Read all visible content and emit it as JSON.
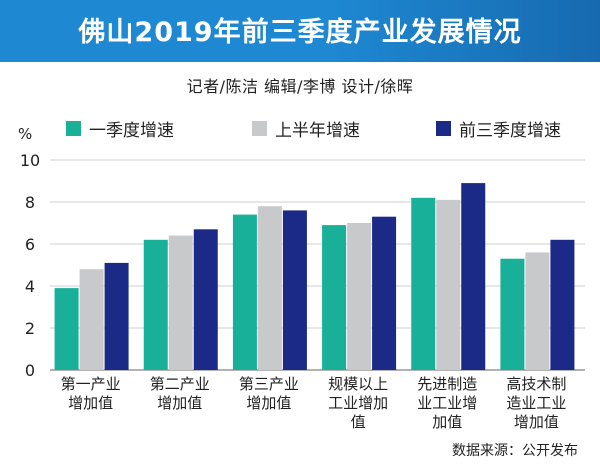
{
  "header": {
    "title": "佛山2019年前三季度产业发展情况",
    "credits": "记者/陈洁  编辑/李博  设计/徐晖"
  },
  "source": "数据来源：公开发布",
  "colors": {
    "banner": "#1e88d2",
    "series_q1": "#19b09a",
    "series_h1": "#c8c9cb",
    "series_q3": "#1a2a86"
  },
  "chart_data": {
    "type": "bar",
    "ylabel": "%",
    "ylim": [
      0,
      10
    ],
    "yticks": [
      "0",
      "2",
      "4",
      "6",
      "8",
      "10"
    ],
    "grid": true,
    "legend_position": "top",
    "categories": [
      [
        "第一产业",
        "增加值"
      ],
      [
        "第二产业",
        "增加值"
      ],
      [
        "第三产业",
        "增加值"
      ],
      [
        "规模以上",
        "工业增加",
        "值"
      ],
      [
        "先进制造",
        "业工业增",
        "加值"
      ],
      [
        "高技术制",
        "造业工业",
        "增加值"
      ]
    ],
    "series": [
      {
        "name": "一季度增速",
        "values": [
          3.9,
          6.2,
          7.4,
          6.9,
          8.2,
          5.3
        ]
      },
      {
        "name": "上半年增速",
        "values": [
          4.8,
          6.4,
          7.8,
          7.0,
          8.1,
          5.6
        ]
      },
      {
        "name": "前三季度增速",
        "values": [
          5.1,
          6.7,
          7.6,
          7.3,
          8.9,
          6.2
        ]
      }
    ]
  }
}
